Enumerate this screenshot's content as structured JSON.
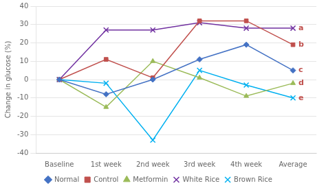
{
  "chart_data": {
    "type": "line",
    "categories": [
      "Baseline",
      "1st week",
      "2nd week",
      "3rd week",
      "4th week",
      "Average"
    ],
    "series": [
      {
        "name": "Normal",
        "color": "#4472C4",
        "marker": "diamond",
        "values": [
          0,
          -8,
          0,
          11,
          19,
          5
        ]
      },
      {
        "name": "Control",
        "color": "#C0504D",
        "marker": "square",
        "values": [
          0,
          11,
          1,
          32,
          32,
          19
        ]
      },
      {
        "name": "Metformin",
        "color": "#9BBB59",
        "marker": "triangle",
        "values": [
          0,
          -15,
          10,
          1,
          -9,
          -2
        ]
      },
      {
        "name": "White Rice",
        "color": "#7030A0",
        "marker": "x",
        "values": [
          0,
          27,
          27,
          31,
          28,
          28
        ]
      },
      {
        "name": "Brown Rice",
        "color": "#00B0F0",
        "marker": "x",
        "values": [
          0,
          -2,
          -33,
          5,
          -3,
          -10
        ]
      }
    ],
    "annotations": [
      {
        "text": "a",
        "x": "Average",
        "y": 28,
        "color": "#C0504D"
      },
      {
        "text": "b",
        "x": "Average",
        "y": 19,
        "color": "#C0504D"
      },
      {
        "text": "c",
        "x": "Average",
        "y": 5,
        "color": "#C0504D"
      },
      {
        "text": "d",
        "x": "Average",
        "y": -2,
        "color": "#C0504D"
      },
      {
        "text": "e",
        "x": "Average",
        "y": -10,
        "color": "#C0504D"
      }
    ],
    "ylabel": "Change in glucose (%)",
    "ylim": [
      -40,
      40
    ],
    "yticks": [
      -40,
      -30,
      -20,
      -10,
      0,
      10,
      20,
      30,
      40
    ],
    "grid": true,
    "legend": "bottom"
  }
}
